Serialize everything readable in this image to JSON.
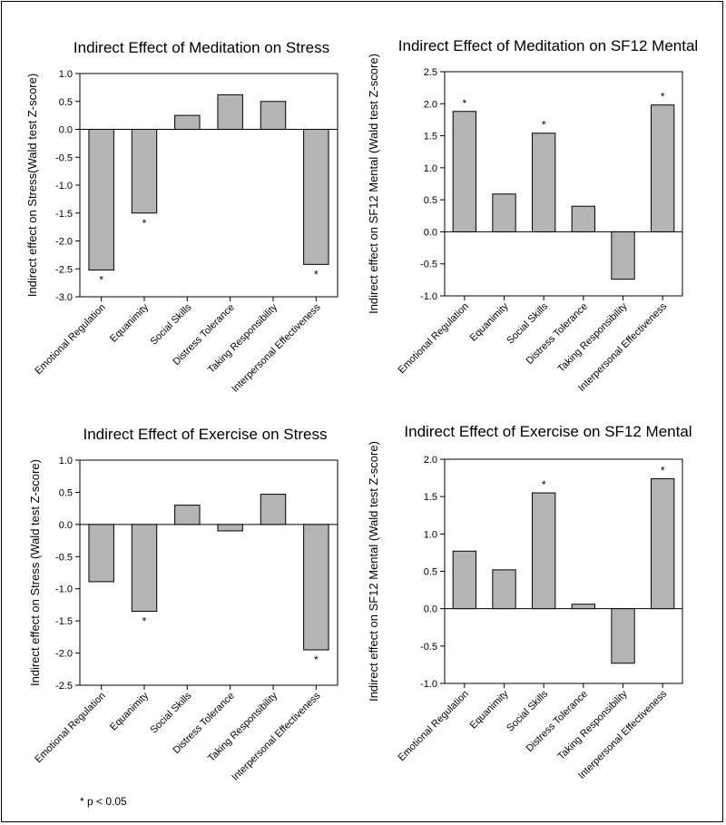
{
  "footnote": "* p < 0.05",
  "chart_data": [
    {
      "type": "bar",
      "title": "Indirect Effect of Meditation on Stress",
      "ylabel": "Indirect effect on Stress(Wald test Z-score)",
      "xlabel": "",
      "ylim": [
        -3.0,
        1.0
      ],
      "ytick_step": 0.5,
      "categories": [
        "Emotional Regulation",
        "Equanimity",
        "Social Skills",
        "Distress Tolerance",
        "Taking Responsibility",
        "Interpersonal Effectiveness"
      ],
      "values": [
        -2.52,
        -1.5,
        0.25,
        0.62,
        0.5,
        -2.42
      ],
      "significant": [
        true,
        true,
        false,
        false,
        false,
        true
      ],
      "bar_color": "#b4b4b4"
    },
    {
      "type": "bar",
      "title": "Indirect Effect of Meditation on SF12 Mental",
      "ylabel": "Indirect effect on SF12 Mental (Wald test Z-score)",
      "xlabel": "",
      "ylim": [
        -1.0,
        2.5
      ],
      "ytick_step": 0.5,
      "categories": [
        "Emotional Regulation",
        "Equanimity",
        "Social Skills",
        "Distress Tolerance",
        "Taking Responsibility",
        "Interpersonal Effectiveness"
      ],
      "values": [
        1.88,
        0.59,
        1.54,
        0.4,
        -0.74,
        1.98
      ],
      "significant": [
        true,
        false,
        true,
        false,
        false,
        true
      ],
      "bar_color": "#b4b4b4"
    },
    {
      "type": "bar",
      "title": "Indirect Effect of Exercise on Stress",
      "ylabel": "Indirect effect on Stress (Wald test Z-score)",
      "xlabel": "",
      "ylim": [
        -2.5,
        1.0
      ],
      "ytick_step": 0.5,
      "categories": [
        "Emotional Regulation",
        "Equanimity",
        "Social Skills",
        "Distress Tolerance",
        "Taking Responsibility",
        "Interpersonal Effectiveness"
      ],
      "values": [
        -0.89,
        -1.35,
        0.3,
        -0.1,
        0.47,
        -1.95
      ],
      "significant": [
        false,
        true,
        false,
        false,
        false,
        true
      ],
      "bar_color": "#b4b4b4"
    },
    {
      "type": "bar",
      "title": "Indirect Effect of Exercise on SF12 Mental",
      "ylabel": "Indirect effect on SF12 Mental (Wald test Z-score)",
      "xlabel": "",
      "ylim": [
        -1.0,
        2.0
      ],
      "ytick_step": 0.5,
      "categories": [
        "Emotional Regulation",
        "Equanimity",
        "Social Skills",
        "Distress Tolerance",
        "Taking Responsibility",
        "Interpersonal Effectiveness"
      ],
      "values": [
        0.77,
        0.52,
        1.55,
        0.06,
        -0.73,
        1.74
      ],
      "significant": [
        false,
        false,
        true,
        false,
        false,
        true
      ],
      "bar_color": "#b4b4b4"
    }
  ]
}
